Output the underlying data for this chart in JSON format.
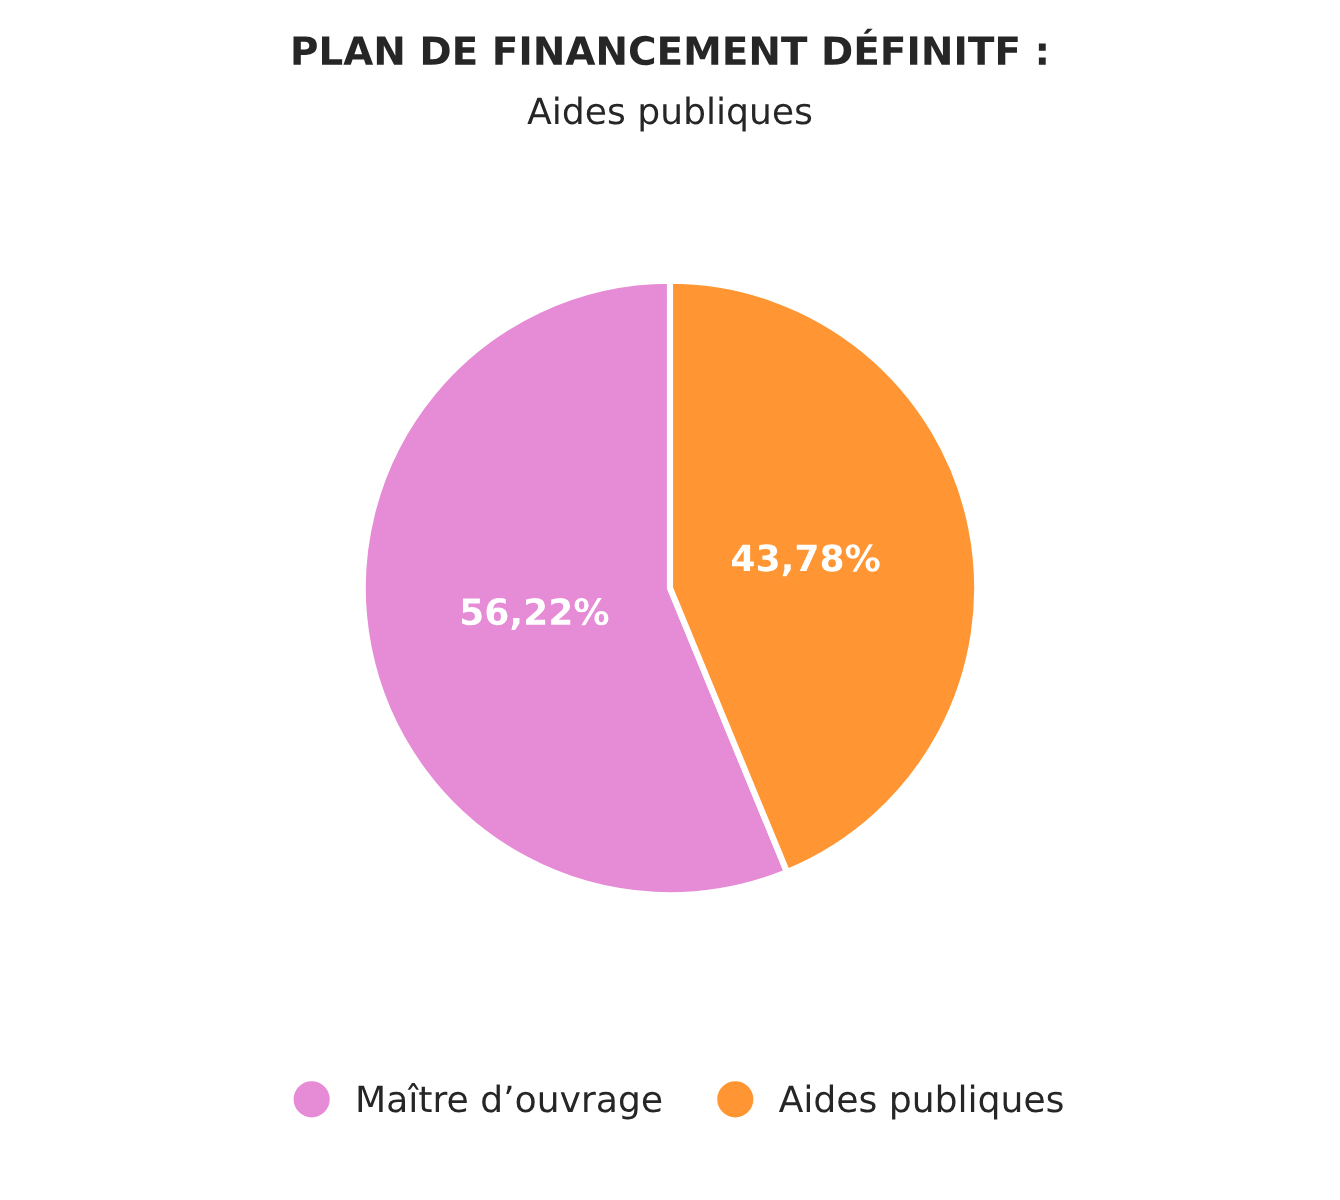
{
  "chart_data": {
    "type": "pie",
    "title": "PLAN DE FINANCEMENT DÉFINITF :",
    "subtitle": "Aides publiques",
    "categories": [
      "Maître d’ouvrage",
      "Aides publiques"
    ],
    "values": [
      56.22,
      43.78
    ],
    "colors": [
      "#e68bd6",
      "#ff9533"
    ],
    "value_labels": [
      "56,22%",
      "43,78%"
    ],
    "legend": "bottom"
  }
}
